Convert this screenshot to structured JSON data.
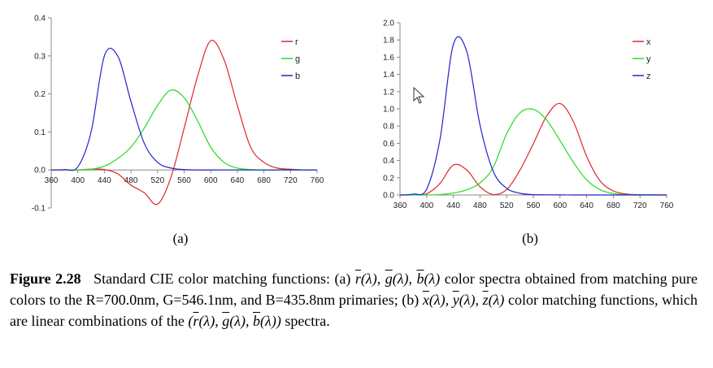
{
  "chart_data": [
    {
      "type": "line",
      "panel_label": "(a)",
      "x": [
        360,
        380,
        400,
        420,
        440,
        460,
        480,
        500,
        520,
        540,
        560,
        580,
        600,
        620,
        640,
        660,
        680,
        700,
        720,
        740,
        760
      ],
      "xticks": [
        360,
        400,
        440,
        480,
        520,
        560,
        600,
        640,
        680,
        720,
        760
      ],
      "yticks": [
        -0.1,
        0.0,
        0.1,
        0.2,
        0.3,
        0.4
      ],
      "ytick_labels": [
        "-0.1",
        "0.0",
        "0.1",
        "0.2",
        "0.3",
        "0.4"
      ],
      "xlim": [
        360,
        760
      ],
      "ylim": [
        -0.1,
        0.4
      ],
      "legend_position": "top-right",
      "series": [
        {
          "name": "r",
          "color": "#e0262b",
          "values": [
            0.0,
            0.0,
            0.0,
            0.002,
            0.001,
            -0.01,
            -0.04,
            -0.06,
            -0.09,
            -0.02,
            0.11,
            0.245,
            0.34,
            0.29,
            0.17,
            0.06,
            0.02,
            0.005,
            0.002,
            0.0,
            0.0
          ]
        },
        {
          "name": "g",
          "color": "#22dd22",
          "values": [
            0.0,
            0.0,
            0.0,
            0.002,
            0.01,
            0.03,
            0.06,
            0.11,
            0.17,
            0.21,
            0.19,
            0.13,
            0.06,
            0.02,
            0.005,
            0.001,
            0.0,
            0.0,
            0.0,
            0.0,
            0.0
          ]
        },
        {
          "name": "b",
          "color": "#2323c8",
          "values": [
            0.0,
            0.001,
            0.008,
            0.1,
            0.3,
            0.3,
            0.18,
            0.07,
            0.02,
            0.005,
            0.001,
            0.0,
            0.0,
            0.0,
            0.0,
            0.0,
            0.0,
            0.0,
            0.0,
            0.0,
            0.0
          ]
        }
      ]
    },
    {
      "type": "line",
      "panel_label": "(b)",
      "x": [
        360,
        380,
        400,
        420,
        440,
        460,
        480,
        500,
        520,
        540,
        560,
        580,
        600,
        620,
        640,
        660,
        680,
        700,
        720,
        740,
        760
      ],
      "xticks": [
        360,
        400,
        440,
        480,
        520,
        560,
        600,
        640,
        680,
        720,
        760
      ],
      "yticks": [
        0.0,
        0.2,
        0.4,
        0.6,
        0.8,
        1.0,
        1.2,
        1.4,
        1.6,
        1.8,
        2.0
      ],
      "ytick_labels": [
        "0.0",
        "0.2",
        "0.4",
        "0.6",
        "0.8",
        "1.0",
        "1.2",
        "1.4",
        "1.6",
        "1.8",
        "2.0"
      ],
      "xlim": [
        360,
        760
      ],
      "ylim": [
        0.0,
        2.0
      ],
      "legend_position": "top-right",
      "series": [
        {
          "name": "x",
          "color": "#e0262b",
          "values": [
            0.0,
            0.002,
            0.014,
            0.134,
            0.348,
            0.291,
            0.096,
            0.005,
            0.063,
            0.29,
            0.595,
            0.916,
            1.062,
            0.854,
            0.448,
            0.165,
            0.047,
            0.011,
            0.003,
            0.001,
            0.0
          ]
        },
        {
          "name": "y",
          "color": "#22dd22",
          "values": [
            0.0,
            0.0,
            0.0,
            0.004,
            0.023,
            0.06,
            0.139,
            0.323,
            0.71,
            0.954,
            0.995,
            0.87,
            0.631,
            0.381,
            0.175,
            0.061,
            0.017,
            0.004,
            0.001,
            0.0,
            0.0
          ]
        },
        {
          "name": "z",
          "color": "#2323c8",
          "values": [
            0.0,
            0.01,
            0.068,
            0.646,
            1.747,
            1.669,
            0.813,
            0.272,
            0.078,
            0.02,
            0.004,
            0.002,
            0.001,
            0.0,
            0.0,
            0.0,
            0.0,
            0.0,
            0.0,
            0.0,
            0.0
          ]
        }
      ]
    }
  ],
  "caption": {
    "figure_label": "Figure 2.28",
    "title_text": "Standard CIE color matching functions: (a)",
    "a_sym1": "r",
    "a_sym2": "g",
    "a_sym3": "b",
    "a_text": "color spectra obtained from matching pure colors to the R=700.0nm, G=546.1nm, and B=435.8nm primaries; (b)",
    "b_sym1": "x",
    "b_sym2": "y",
    "b_sym3": "z",
    "b_text": "color matching functions, which are linear combinations of the",
    "end_text": "spectra."
  }
}
